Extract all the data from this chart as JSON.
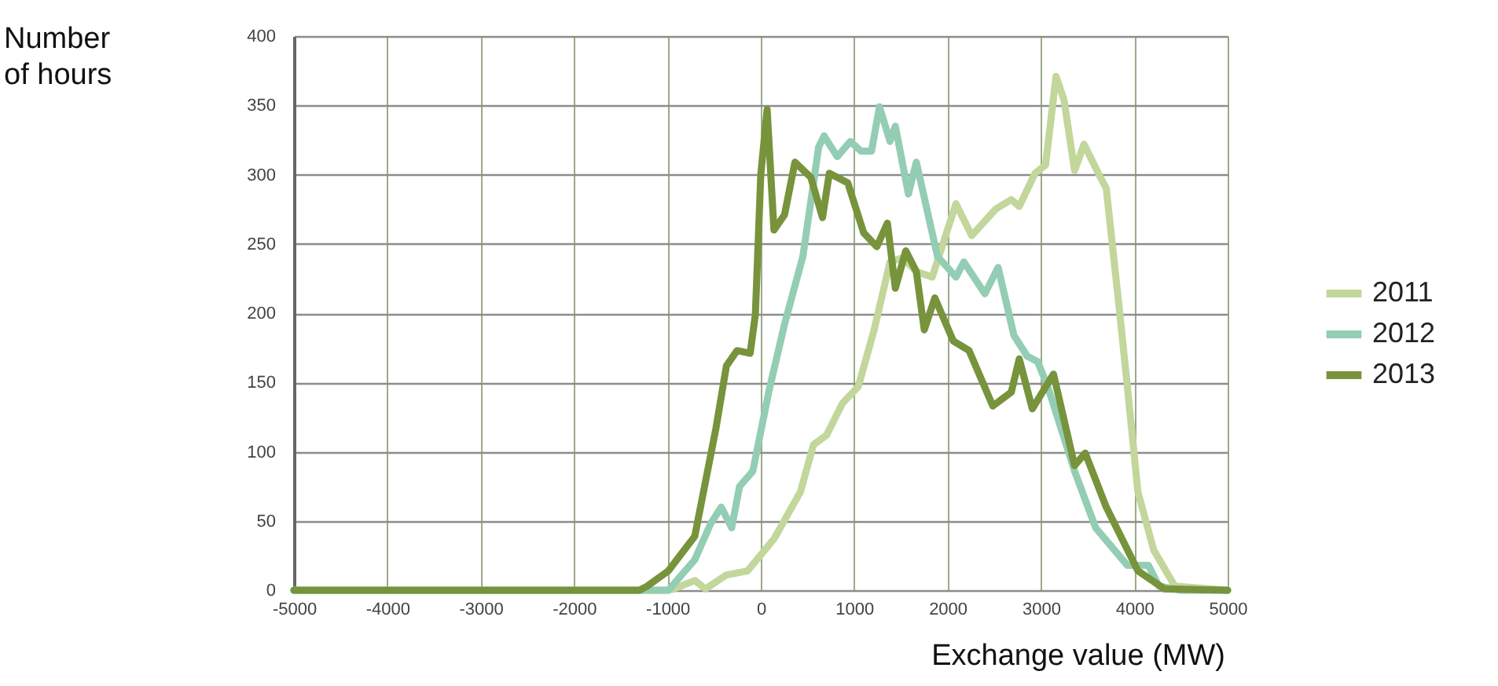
{
  "chart_data": {
    "type": "line",
    "xlabel": "Exchange value (MW)",
    "ylabel": "Number of hours",
    "xlim": [
      -5000,
      5000
    ],
    "xticks": [
      -5000,
      -4000,
      -3000,
      -2000,
      -1000,
      0,
      1000,
      2000,
      3000,
      4000,
      5000
    ],
    "ylim": [
      0,
      400
    ],
    "yticks": [
      0,
      50,
      100,
      150,
      200,
      250,
      300,
      350,
      400
    ],
    "grid": true,
    "legend": "right",
    "marker": "none",
    "line_style": "solid",
    "series": [
      {
        "name": "2011",
        "color": "#c3d69b",
        "x": [
          -5000,
          -1000,
          -933,
          -707,
          -593,
          -368,
          -142,
          141,
          424,
          564,
          705,
          875,
          1044,
          1214,
          1384,
          1520,
          1666,
          1836,
          2090,
          2259,
          2514,
          2683,
          2768,
          2937,
          3050,
          3162,
          3247,
          3361,
          3462,
          3615,
          3700,
          3840,
          3926,
          4039,
          4208,
          4434,
          5000
        ],
        "values": [
          0,
          0,
          1,
          7,
          1,
          11,
          14,
          37,
          71,
          105,
          112,
          135,
          147,
          188,
          237,
          240,
          230,
          226,
          279,
          256,
          275,
          282,
          277,
          301,
          307,
          371,
          354,
          303,
          322,
          301,
          290,
          203,
          147,
          71,
          29,
          3,
          0
        ]
      },
      {
        "name": "2012",
        "color": "#93cdb4",
        "x": [
          -5000,
          -1100,
          -990,
          -707,
          -537,
          -424,
          -312,
          -227,
          -85,
          85,
          254,
          451,
          620,
          678,
          819,
          959,
          1073,
          1186,
          1271,
          1384,
          1441,
          1581,
          1666,
          1892,
          2090,
          2175,
          2400,
          2542,
          2711,
          2853,
          2966,
          3078,
          3361,
          3587,
          3926,
          4152,
          4264,
          4500,
          5000
        ],
        "values": [
          0,
          0,
          0,
          22,
          48,
          60,
          45,
          75,
          86,
          143,
          192,
          241,
          320,
          328,
          313,
          324,
          317,
          317,
          349,
          324,
          335,
          286,
          309,
          241,
          226,
          237,
          214,
          233,
          184,
          169,
          165,
          146,
          86,
          45,
          18,
          18,
          3,
          0,
          0
        ]
      },
      {
        "name": "2013",
        "color": "#77933c",
        "x": [
          -5000,
          -1300,
          -1215,
          -990,
          -707,
          -480,
          -368,
          -254,
          -114,
          -58,
          0,
          68,
          141,
          254,
          366,
          536,
          661,
          734,
          932,
          1102,
          1242,
          1356,
          1441,
          1553,
          1666,
          1751,
          1864,
          2061,
          2231,
          2485,
          2683,
          2768,
          2908,
          3135,
          3361,
          3475,
          3700,
          4039,
          4322,
          5000
        ],
        "values": [
          0,
          0,
          3,
          14,
          39,
          117,
          162,
          173,
          171,
          199,
          300,
          347,
          260,
          271,
          309,
          298,
          269,
          301,
          294,
          258,
          248,
          265,
          218,
          245,
          230,
          188,
          211,
          180,
          173,
          133,
          143,
          167,
          131,
          156,
          90,
          99,
          60,
          14,
          1,
          0
        ]
      }
    ]
  }
}
